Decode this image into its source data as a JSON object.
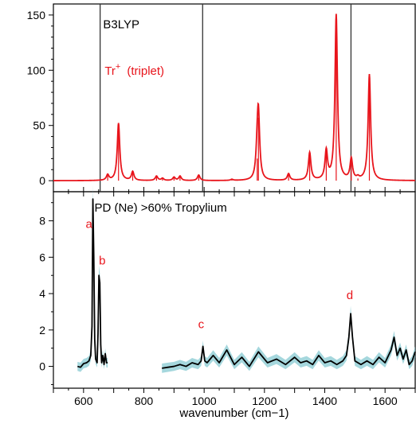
{
  "chart_data": [
    {
      "type": "line",
      "panel": "top",
      "title": "",
      "method_label": "B3LYP",
      "species_label": {
        "base": "Tr",
        "superscript": "+",
        "suffix": "(triplet)"
      },
      "xlabel": "",
      "ylabel": "",
      "xlim": [
        500,
        1700
      ],
      "ylim": [
        -10,
        160
      ],
      "yticks": [
        0,
        50,
        100,
        150
      ],
      "grid": false,
      "colors": {
        "spectrum": "#e8141b"
      },
      "vertical_lines": [
        655,
        995,
        1487
      ],
      "series": [
        {
          "stick_positions": [
            680,
            716,
            763,
            842,
            862,
            900,
            920,
            982,
            1092,
            1176,
            1180,
            1280,
            1350,
            1405,
            1438,
            1488,
            1510,
            1548
          ],
          "stick_heights": [
            5,
            52,
            8,
            4,
            2,
            3,
            4,
            5,
            1,
            20,
            57,
            6,
            25,
            26,
            150,
            19,
            2,
            96
          ]
        }
      ]
    },
    {
      "type": "line",
      "panel": "bottom",
      "title": "",
      "label": "PD (Ne) >60% Tropylium",
      "xlabel": "wavenumber (cm−1)",
      "ylabel": "",
      "xlim": [
        500,
        1700
      ],
      "ylim": [
        -1.2,
        9.6
      ],
      "xticks": [
        600,
        800,
        1000,
        1200,
        1400,
        1600
      ],
      "yticks": [
        0,
        2,
        4,
        6,
        8
      ],
      "grid": false,
      "colors": {
        "line": "#000000",
        "error_band": "#7fc6cf",
        "annotation": "#e8141b"
      },
      "segments": [
        {
          "x": [
            580,
            590,
            600,
            610,
            618,
            624,
            628,
            631,
            634,
            637,
            640,
            645,
            648,
            651,
            654,
            657,
            660,
            664,
            668,
            672,
            676,
            680
          ],
          "y": [
            0,
            -0.05,
            0.15,
            0.2,
            0.3,
            0.6,
            2.2,
            9.2,
            6.0,
            1.5,
            0.4,
            0.2,
            1.8,
            5.0,
            4.6,
            1.2,
            0.2,
            0.6,
            0.1,
            0.7,
            0.2,
            0.2
          ]
        },
        {
          "x": [
            860,
            880,
            900,
            920,
            940,
            960,
            980,
            990,
            996,
            1002,
            1010,
            1030,
            1050,
            1075,
            1100,
            1125,
            1150,
            1180,
            1210,
            1240,
            1270,
            1300,
            1320,
            1340,
            1360,
            1380,
            1400,
            1420,
            1440,
            1460,
            1472,
            1480,
            1486,
            1492,
            1500,
            1520,
            1540,
            1560,
            1580,
            1600,
            1620,
            1630,
            1640,
            1650,
            1660,
            1670,
            1680,
            1690,
            1700
          ],
          "y": [
            -0.1,
            -0.05,
            0.0,
            0.1,
            0.0,
            0.2,
            0.1,
            0.3,
            1.1,
            0.3,
            0.2,
            0.6,
            0.2,
            0.9,
            0.1,
            0.5,
            0.0,
            0.8,
            0.2,
            0.4,
            0.1,
            0.5,
            0.2,
            0.3,
            0.1,
            0.6,
            0.2,
            0.3,
            0.1,
            0.3,
            0.6,
            1.6,
            2.9,
            1.6,
            0.3,
            0.1,
            0.3,
            0.1,
            0.5,
            0.2,
            0.9,
            1.6,
            0.6,
            1.0,
            0.4,
            0.9,
            0.1,
            0.3,
            0.8
          ]
        }
      ],
      "annotations": [
        {
          "text": "a",
          "x": 618,
          "y": 7.6
        },
        {
          "text": "b",
          "x": 662,
          "y": 5.6
        },
        {
          "text": "c",
          "x": 990,
          "y": 2.1
        },
        {
          "text": "d",
          "x": 1483,
          "y": 3.7
        }
      ]
    }
  ]
}
